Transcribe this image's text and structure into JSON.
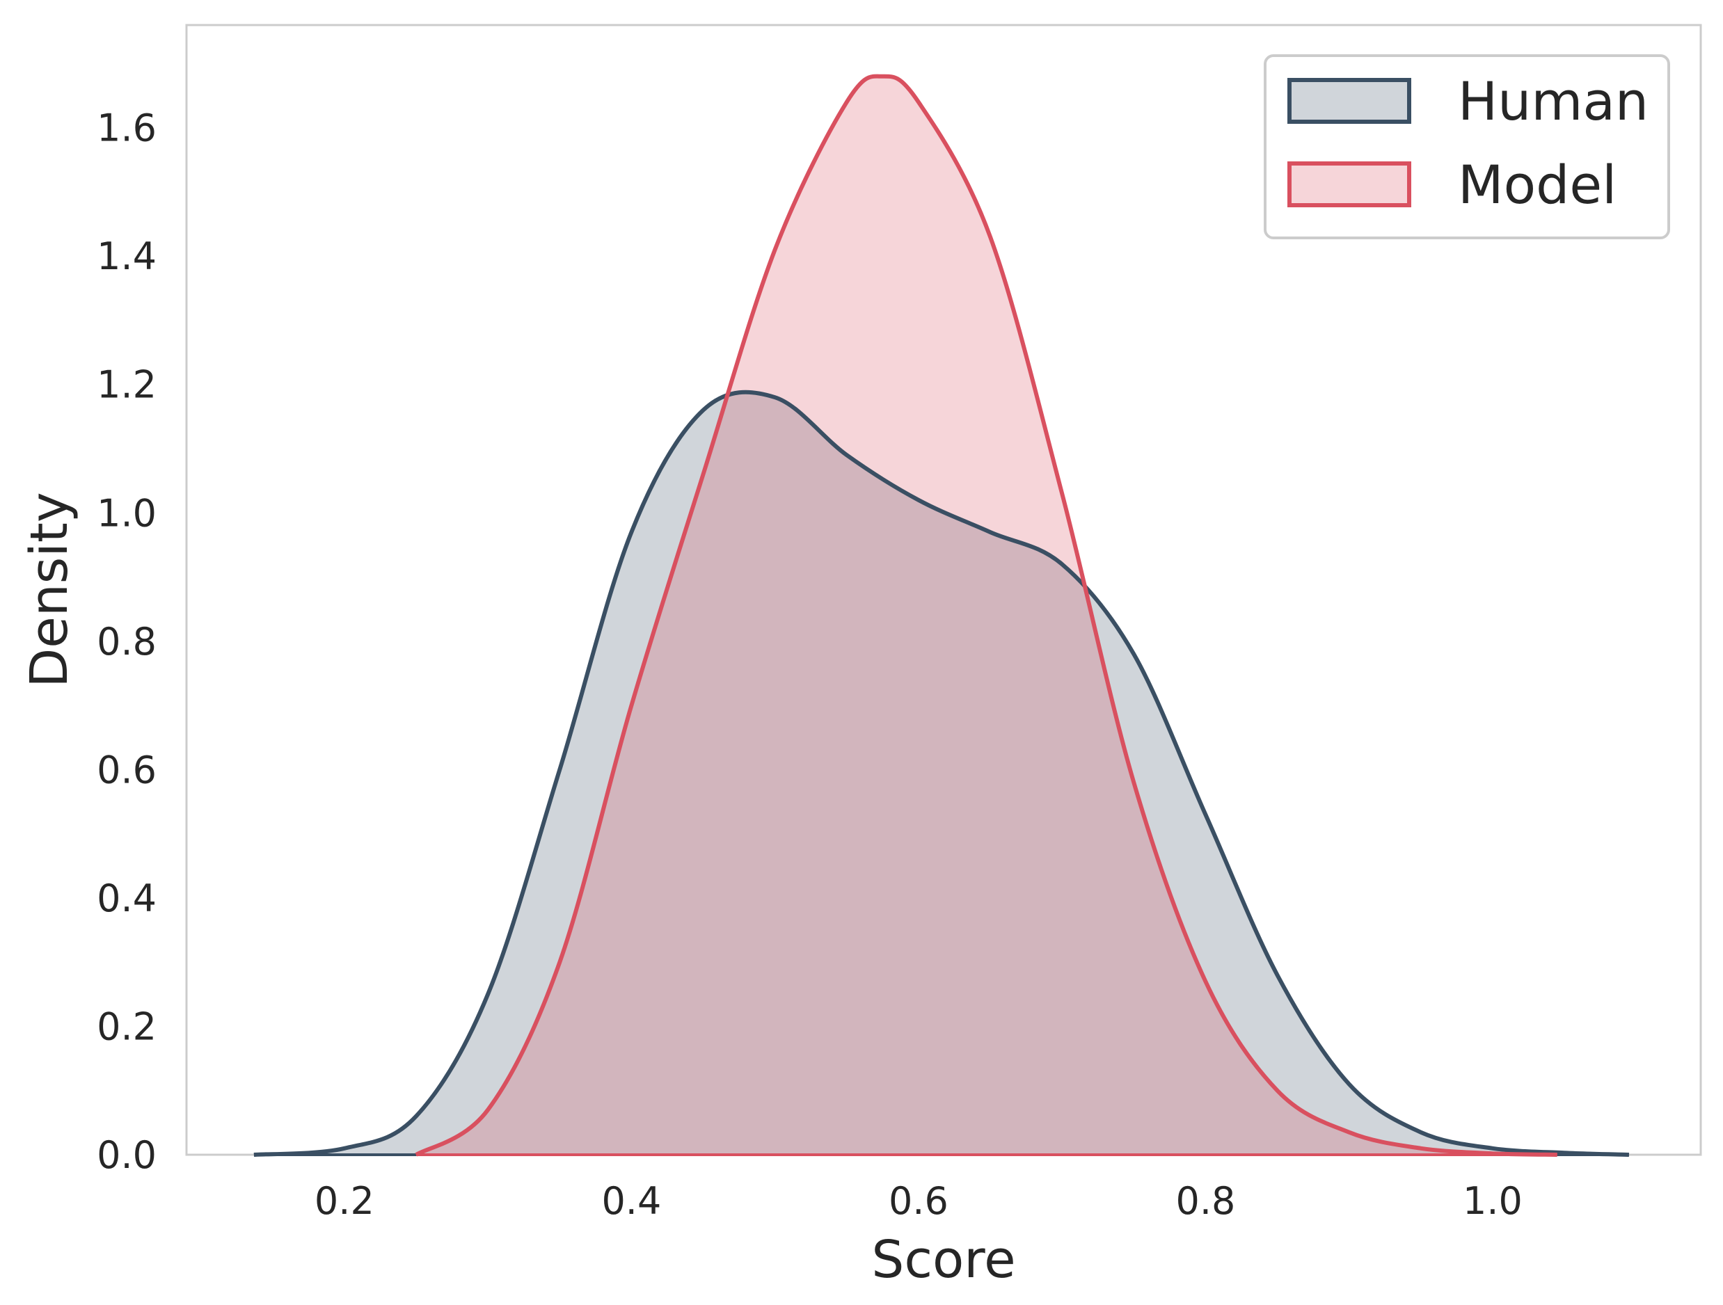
{
  "chart_data": {
    "type": "area",
    "xlabel": "Score",
    "ylabel": "Density",
    "xlim": [
      0.09,
      1.145
    ],
    "ylim": [
      0.0,
      1.76
    ],
    "xticks": [
      0.2,
      0.4,
      0.6,
      0.8,
      1.0
    ],
    "xtick_labels": [
      "0.2",
      "0.4",
      "0.6",
      "0.8",
      "1.0"
    ],
    "yticks": [
      0.0,
      0.2,
      0.4,
      0.6,
      0.8,
      1.0,
      1.2,
      1.4,
      1.6
    ],
    "ytick_labels": [
      "0.0",
      "0.2",
      "0.4",
      "0.6",
      "0.8",
      "1.0",
      "1.2",
      "1.4",
      "1.6"
    ],
    "grid": false,
    "legend_position": "top-right",
    "series": [
      {
        "name": "Human",
        "color": "#3a4f63",
        "x": [
          0.137,
          0.2,
          0.25,
          0.3,
          0.35,
          0.4,
          0.45,
          0.5,
          0.55,
          0.6,
          0.65,
          0.7,
          0.75,
          0.8,
          0.85,
          0.9,
          0.95,
          1.0,
          1.05,
          1.095
        ],
        "y": [
          0.0,
          0.01,
          0.06,
          0.25,
          0.6,
          0.97,
          1.16,
          1.18,
          1.09,
          1.02,
          0.97,
          0.92,
          0.78,
          0.53,
          0.28,
          0.11,
          0.035,
          0.01,
          0.003,
          0.0
        ]
      },
      {
        "name": "Model",
        "color": "#d9505f",
        "x": [
          0.25,
          0.3,
          0.35,
          0.4,
          0.45,
          0.5,
          0.55,
          0.575,
          0.6,
          0.65,
          0.7,
          0.75,
          0.8,
          0.85,
          0.9,
          0.95,
          1.0,
          1.045
        ],
        "y": [
          0.0,
          0.07,
          0.3,
          0.7,
          1.06,
          1.41,
          1.64,
          1.68,
          1.64,
          1.43,
          1.03,
          0.58,
          0.27,
          0.1,
          0.035,
          0.01,
          0.002,
          0.0
        ]
      }
    ]
  }
}
